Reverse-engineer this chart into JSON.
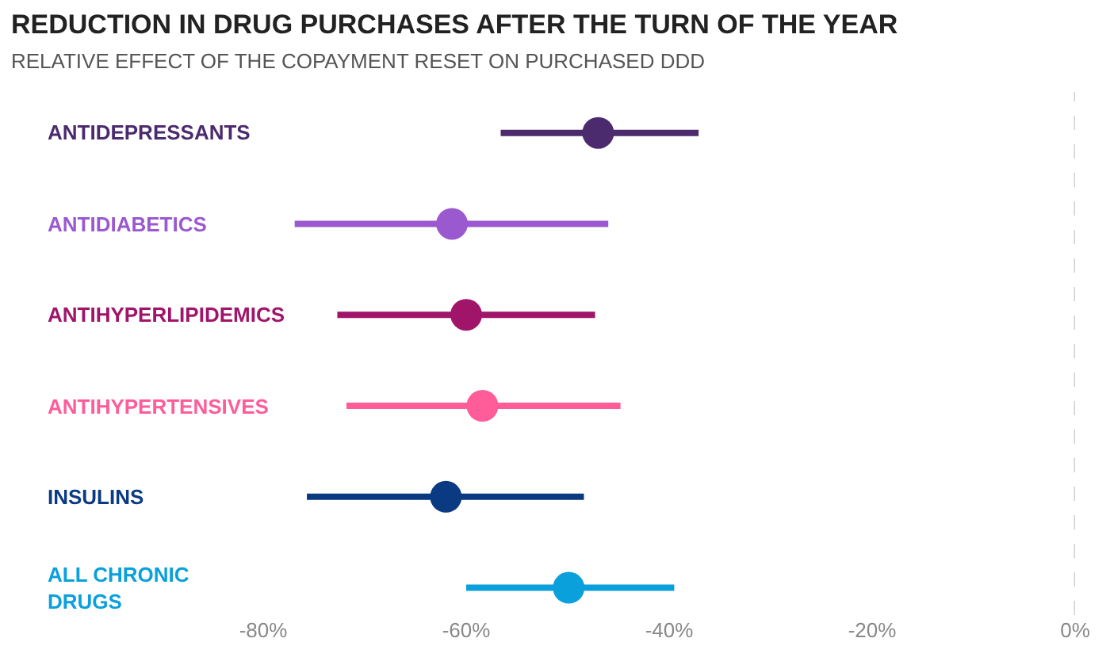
{
  "chart_data": {
    "type": "scatter",
    "orientation": "horizontal",
    "title": "REDUCTION IN DRUG PURCHASES AFTER THE TURN OF THE YEAR",
    "subtitle": "RELATIVE EFFECT OF THE COPAYMENT RESET ON PURCHASED DDD",
    "categories": [
      "ANTIDEPRESSANTS",
      "ANTIDIABETICS",
      "ANTIHYPERLIPIDEMICS",
      "ANTIHYPERTENSIVES",
      "INSULINS",
      "ALL CHRONIC DRUGS"
    ],
    "values": [
      -47,
      -61.4,
      -60,
      -58.4,
      -62,
      -49.9
    ],
    "errors": [
      [
        -56.6,
        -37.1
      ],
      [
        -76.9,
        -46
      ],
      [
        -72.7,
        -47.3
      ],
      [
        -71.8,
        -44.8
      ],
      [
        -75.7,
        -48.4
      ],
      [
        -60,
        -39.5
      ]
    ],
    "colors": [
      "#4b2a6e",
      "#9b59d0",
      "#a0146a",
      "#ff5c9a",
      "#0a3a82",
      "#0aa0dc"
    ],
    "xlim": [
      -80,
      0
    ],
    "xticks": [
      {
        "value": -80,
        "label": "-80%"
      },
      {
        "value": -60,
        "label": "-60%"
      },
      {
        "value": -40,
        "label": "-40%"
      },
      {
        "value": -20,
        "label": "-20%"
      },
      {
        "value": 0,
        "label": "0%"
      }
    ],
    "ref_lines": [
      {
        "axis": "x",
        "value": 0,
        "color": "#d0d0d0",
        "line_style": "dashed"
      }
    ],
    "marker": "circle",
    "legend": false
  }
}
